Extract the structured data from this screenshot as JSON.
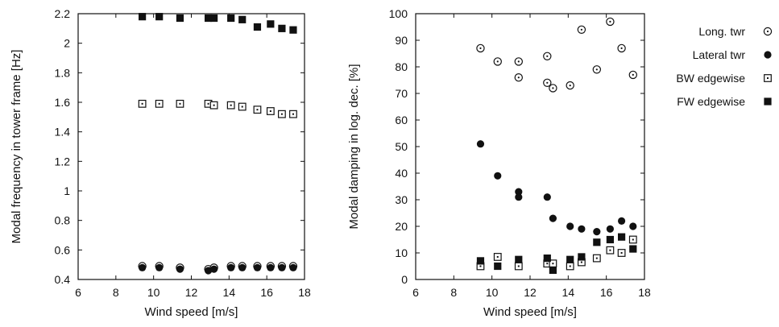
{
  "legend": [
    {
      "label": "Long. twr",
      "marker": "open-circle-dot"
    },
    {
      "label": "Lateral twr",
      "marker": "filled-circle"
    },
    {
      "label": "BW edgewise",
      "marker": "open-square-dot"
    },
    {
      "label": "FW edgewise",
      "marker": "filled-square"
    }
  ],
  "chart_data": [
    {
      "type": "scatter",
      "xlabel": "Wind speed [m/s]",
      "ylabel": "Modal frequency in tower frame [Hz]",
      "xlim": [
        6,
        18
      ],
      "ylim": [
        0.4,
        2.2
      ],
      "xticks": [
        6,
        8,
        10,
        12,
        14,
        16,
        18
      ],
      "yticks": [
        0.4,
        0.6,
        0.8,
        1,
        1.2,
        1.4,
        1.6,
        1.8,
        2,
        2.2
      ],
      "grid": false,
      "series": [
        {
          "name": "Long. twr",
          "marker": "open-circle-dot",
          "x": [
            9.4,
            10.3,
            11.4,
            12.9,
            13.2,
            14.1,
            14.7,
            15.5,
            16.2,
            16.8,
            17.4
          ],
          "y": [
            0.49,
            0.49,
            0.48,
            0.47,
            0.48,
            0.49,
            0.49,
            0.49,
            0.49,
            0.49,
            0.49
          ]
        },
        {
          "name": "Lateral twr",
          "marker": "filled-circle",
          "x": [
            9.4,
            10.3,
            11.4,
            12.9,
            13.2,
            14.1,
            14.7,
            15.5,
            16.2,
            16.8,
            17.4
          ],
          "y": [
            0.48,
            0.48,
            0.47,
            0.46,
            0.47,
            0.48,
            0.48,
            0.48,
            0.48,
            0.48,
            0.48
          ]
        },
        {
          "name": "BW edgewise",
          "marker": "open-square-dot",
          "x": [
            9.4,
            10.3,
            11.4,
            12.9,
            13.2,
            14.1,
            14.7,
            15.5,
            16.2,
            16.8,
            17.4
          ],
          "y": [
            1.59,
            1.59,
            1.59,
            1.59,
            1.58,
            1.58,
            1.57,
            1.55,
            1.54,
            1.52,
            1.52
          ]
        },
        {
          "name": "FW edgewise",
          "marker": "filled-square",
          "x": [
            9.4,
            10.3,
            11.4,
            12.9,
            13.2,
            14.1,
            14.7,
            15.5,
            16.2,
            16.8,
            17.4
          ],
          "y": [
            2.18,
            2.18,
            2.17,
            2.17,
            2.17,
            2.17,
            2.16,
            2.11,
            2.13,
            2.1,
            2.09
          ]
        }
      ]
    },
    {
      "type": "scatter",
      "xlabel": "Wind speed [m/s]",
      "ylabel": "Modal damping in log. dec. [%]",
      "xlim": [
        6,
        18
      ],
      "ylim": [
        0,
        100
      ],
      "xticks": [
        6,
        8,
        10,
        12,
        14,
        16,
        18
      ],
      "yticks": [
        0,
        10,
        20,
        30,
        40,
        50,
        60,
        70,
        80,
        90,
        100
      ],
      "grid": false,
      "series": [
        {
          "name": "Long. twr",
          "marker": "open-circle-dot",
          "x": [
            9.4,
            10.3,
            11.4,
            11.4,
            12.9,
            12.9,
            13.2,
            14.1,
            14.7,
            15.5,
            16.2,
            16.8,
            17.4
          ],
          "y": [
            87,
            82,
            82,
            76,
            84,
            74,
            72,
            73,
            94,
            79,
            97,
            87,
            77
          ]
        },
        {
          "name": "Lateral twr",
          "marker": "filled-circle",
          "x": [
            9.4,
            10.3,
            11.4,
            11.4,
            12.9,
            13.2,
            14.1,
            14.7,
            15.5,
            16.2,
            16.8,
            17.4
          ],
          "y": [
            51,
            39,
            33,
            31,
            31,
            23,
            20,
            19,
            18,
            19,
            22,
            20
          ]
        },
        {
          "name": "BW edgewise",
          "marker": "open-square-dot",
          "x": [
            9.4,
            10.3,
            11.4,
            12.9,
            13.2,
            14.1,
            14.7,
            15.5,
            16.2,
            16.8,
            17.4
          ],
          "y": [
            5,
            8.5,
            5,
            6,
            6,
            5,
            6.5,
            8,
            11,
            10,
            15
          ]
        },
        {
          "name": "FW edgewise",
          "marker": "filled-square",
          "x": [
            9.4,
            10.3,
            11.4,
            12.9,
            13.2,
            14.1,
            14.7,
            15.5,
            16.2,
            16.8,
            17.4
          ],
          "y": [
            7,
            5,
            7.5,
            8,
            3.5,
            7.5,
            8.5,
            14,
            15,
            16,
            11.5
          ]
        }
      ]
    }
  ]
}
